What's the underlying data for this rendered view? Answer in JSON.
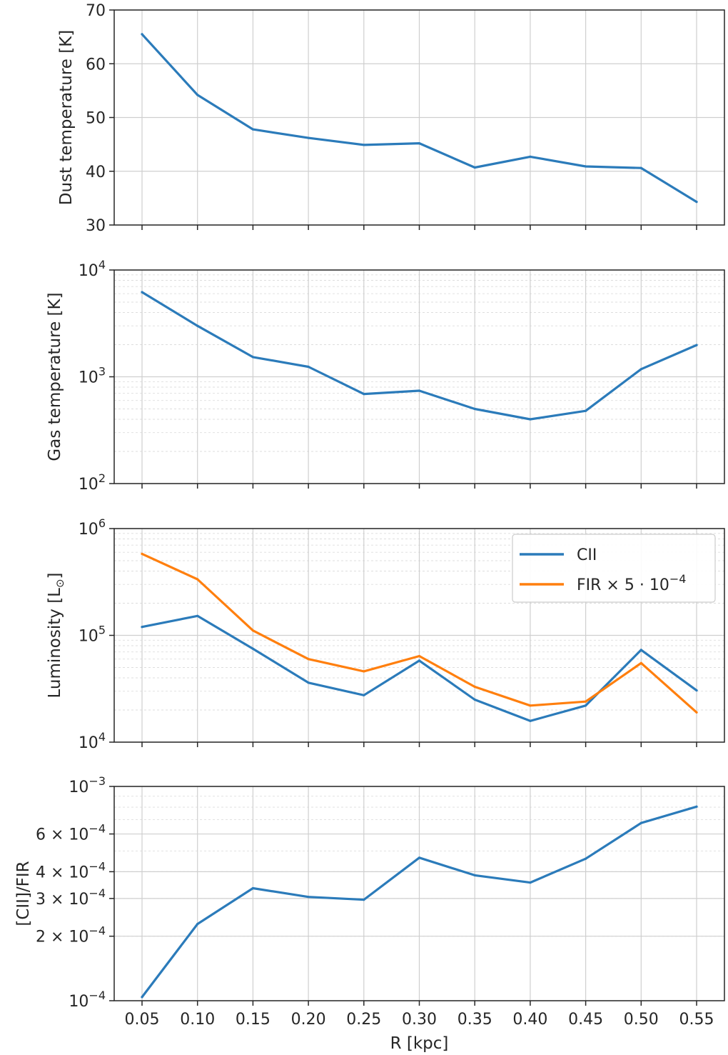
{
  "colors": {
    "blue": "#2b7bba",
    "orange": "#ff7f0e"
  },
  "chart_data": [
    {
      "type": "line",
      "id": "dust",
      "ylabel": "Dust temperature [K]",
      "yscale": "linear",
      "ylim": [
        30,
        70
      ],
      "yticks": [
        30,
        40,
        50,
        60,
        70
      ],
      "ytick_labels": [
        "30",
        "40",
        "50",
        "60",
        "70"
      ],
      "x": [
        0.05,
        0.1,
        0.15,
        0.2,
        0.25,
        0.3,
        0.35,
        0.4,
        0.45,
        0.5,
        0.55
      ],
      "series": [
        {
          "name": "Dust temperature",
          "color": "#2b7bba",
          "values": [
            65.5,
            54.2,
            47.8,
            46.2,
            44.9,
            45.2,
            40.7,
            42.7,
            40.9,
            40.6,
            34.3
          ]
        }
      ]
    },
    {
      "type": "line",
      "id": "gas",
      "ylabel": "Gas temperature [K]",
      "yscale": "log",
      "ylim": [
        100,
        10000
      ],
      "yticks": [
        100,
        1000,
        10000
      ],
      "ytick_labels": [
        {
          "base": "10",
          "exp": "2"
        },
        {
          "base": "10",
          "exp": "3"
        },
        {
          "base": "10",
          "exp": "4"
        }
      ],
      "x": [
        0.05,
        0.1,
        0.15,
        0.2,
        0.25,
        0.3,
        0.35,
        0.4,
        0.45,
        0.5,
        0.55
      ],
      "series": [
        {
          "name": "Gas temperature",
          "color": "#2b7bba",
          "values": [
            6200,
            3000,
            1530,
            1240,
            690,
            740,
            500,
            400,
            480,
            1180,
            1980
          ]
        }
      ]
    },
    {
      "type": "line",
      "id": "lum",
      "ylabel": "Luminosity [L",
      "ylabel_symbol": "⊙",
      "ylabel_close": "]",
      "yscale": "log",
      "ylim": [
        10000,
        1000000
      ],
      "yticks": [
        10000,
        100000,
        1000000
      ],
      "ytick_labels": [
        {
          "base": "10",
          "exp": "4"
        },
        {
          "base": "10",
          "exp": "5"
        },
        {
          "base": "10",
          "exp": "6"
        }
      ],
      "legend": {
        "position": "upper right",
        "entries": [
          {
            "label": "CII"
          },
          {
            "label": "FIR × 5 · 10",
            "sup": "−4"
          }
        ]
      },
      "x": [
        0.05,
        0.1,
        0.15,
        0.2,
        0.25,
        0.3,
        0.35,
        0.4,
        0.45,
        0.5,
        0.55
      ],
      "series": [
        {
          "name": "CII",
          "color": "#2b7bba",
          "values": [
            120000,
            152000,
            75000,
            36000,
            27500,
            58000,
            25000,
            15800,
            22000,
            73000,
            30500
          ]
        },
        {
          "name": "FIR × 5 · 10−4",
          "color": "#ff7f0e",
          "values": [
            580000,
            335000,
            111000,
            60000,
            46000,
            64000,
            33000,
            22000,
            24000,
            55000,
            19000
          ]
        }
      ]
    },
    {
      "type": "line",
      "id": "ratio",
      "ylabel": "[CII]/FIR",
      "yscale": "log",
      "ylim": [
        0.0001,
        0.001
      ],
      "yticks": [
        0.0001,
        0.0002,
        0.0003,
        0.0004,
        0.0006,
        0.001
      ],
      "ytick_labels": [
        {
          "base": "10",
          "exp": "−4"
        },
        {
          "mant": "2 × 10",
          "exp": "−4"
        },
        {
          "mant": "3 × 10",
          "exp": "−4"
        },
        {
          "mant": "4 × 10",
          "exp": "−4"
        },
        {
          "mant": "6 × 10",
          "exp": "−4"
        },
        {
          "base": "10",
          "exp": "−3"
        }
      ],
      "xlabel": "R [kpc]",
      "xticks": [
        0.05,
        0.1,
        0.15,
        0.2,
        0.25,
        0.3,
        0.35,
        0.4,
        0.45,
        0.5,
        0.55
      ],
      "xtick_labels": [
        "0.05",
        "0.10",
        "0.15",
        "0.20",
        "0.25",
        "0.30",
        "0.35",
        "0.40",
        "0.45",
        "0.50",
        "0.55"
      ],
      "x": [
        0.05,
        0.1,
        0.15,
        0.2,
        0.25,
        0.3,
        0.35,
        0.4,
        0.45,
        0.5,
        0.55
      ],
      "series": [
        {
          "name": "[CII]/FIR",
          "color": "#2b7bba",
          "values": [
            0.000104,
            0.000228,
            0.000335,
            0.000305,
            0.000296,
            0.000465,
            0.000385,
            0.000356,
            0.00046,
            0.000675,
            0.000805
          ]
        }
      ]
    }
  ]
}
